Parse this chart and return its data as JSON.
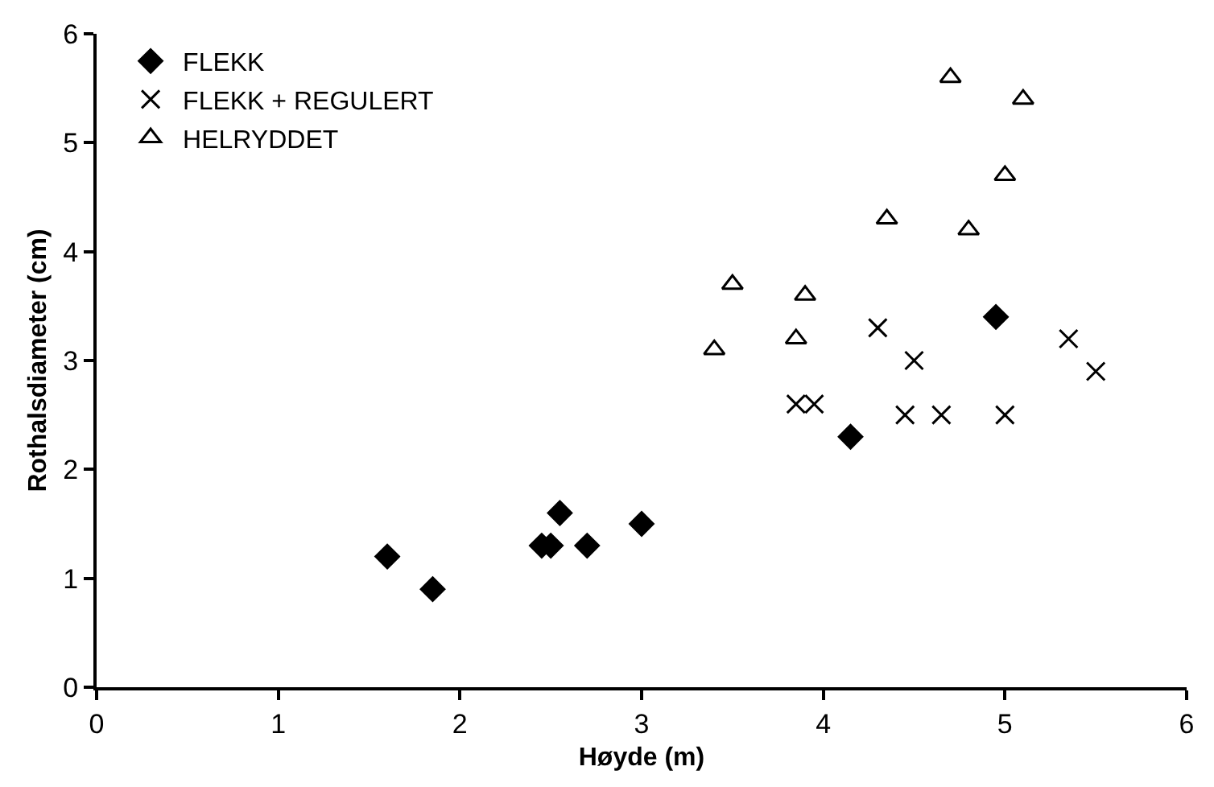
{
  "chart_data": {
    "type": "scatter",
    "xlabel": "Høyde (m)",
    "ylabel": "Rothalsdiameter (cm)",
    "xlim": [
      0,
      6
    ],
    "xticks": [
      0,
      1,
      2,
      3,
      4,
      5,
      6
    ],
    "ylim": [
      0,
      6
    ],
    "yticks": [
      0,
      1,
      2,
      3,
      4,
      5,
      6
    ],
    "grid": false,
    "legend": "top left",
    "series": [
      {
        "name": "FLEKK",
        "color": "#000000",
        "marker": "diamond",
        "x": [
          1.6,
          1.85,
          2.45,
          2.5,
          2.55,
          2.7,
          3.0,
          4.15,
          4.95
        ],
        "values": [
          1.2,
          0.9,
          1.3,
          1.3,
          1.6,
          1.3,
          1.5,
          2.3,
          3.4
        ]
      },
      {
        "name": "FLEKK + REGULERT",
        "color": "#000000",
        "marker": "cross",
        "x": [
          3.85,
          3.95,
          4.3,
          4.5,
          4.45,
          4.65,
          5.0,
          5.35,
          5.5
        ],
        "values": [
          2.6,
          2.6,
          3.3,
          3.0,
          2.5,
          2.5,
          2.5,
          3.2,
          2.9
        ]
      },
      {
        "name": "HELRYDDET",
        "color": "#000000",
        "marker": "triangle",
        "x": [
          3.4,
          3.5,
          3.85,
          3.9,
          4.35,
          4.8,
          5.0,
          4.7,
          5.1
        ],
        "values": [
          3.1,
          3.7,
          3.2,
          3.6,
          4.3,
          4.2,
          4.7,
          5.6,
          5.4
        ]
      }
    ]
  }
}
